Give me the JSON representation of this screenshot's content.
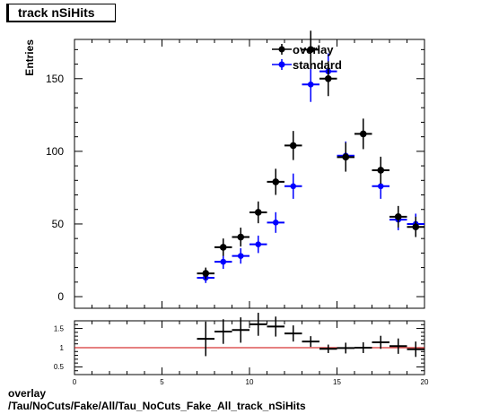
{
  "header": {
    "title": "track nSiHits"
  },
  "footer": {
    "line1": "overlay",
    "line2": "/Tau/NoCuts/Fake/All/Tau_NoCuts_Fake_All_track_nSiHits"
  },
  "colors": {
    "overlay": "#000000",
    "standard": "#0000ff",
    "ratio_line": "#cc0000",
    "frame": "#000000"
  },
  "chart_data": [
    {
      "type": "scatter",
      "ylabel": "Entries",
      "xlim": [
        0,
        20
      ],
      "ylim": [
        -8,
        177
      ],
      "yticks": [
        0,
        50,
        100,
        150
      ],
      "legend_position": "top-center",
      "series": [
        {
          "name": "overlay",
          "x": [
            7.5,
            8.5,
            9.5,
            10.5,
            11.5,
            12.5,
            13.5,
            14.5,
            15.5,
            16.5,
            17.5,
            18.5,
            19.5
          ],
          "values": [
            16,
            34,
            41,
            58,
            79,
            104,
            170,
            150,
            96,
            112,
            87,
            55,
            48
          ],
          "errors": [
            4,
            6,
            6.5,
            7.5,
            9,
            10,
            13,
            12,
            10,
            10.5,
            9.3,
            7.4,
            7
          ]
        },
        {
          "name": "standard",
          "x": [
            7.5,
            8.5,
            9.5,
            10.5,
            11.5,
            12.5,
            13.5,
            14.5,
            15.5,
            16.5,
            17.5,
            18.5,
            19.5
          ],
          "values": [
            13,
            24,
            28,
            36,
            51,
            76,
            146,
            155,
            97,
            null,
            76,
            53,
            50
          ],
          "errors": [
            3.6,
            4.9,
            5.3,
            6,
            7.1,
            8.7,
            12,
            12.4,
            9.8,
            null,
            8.7,
            7.3,
            7.1
          ]
        }
      ]
    },
    {
      "type": "scatter",
      "xlim": [
        0,
        20
      ],
      "ylim": [
        0.3,
        1.7
      ],
      "xticks": [
        0,
        5,
        10,
        15,
        20
      ],
      "yticks": [
        0.5,
        1,
        1.5
      ],
      "reference_line": 1,
      "series": [
        {
          "name": "ratio",
          "x": [
            7.5,
            8.5,
            9.5,
            10.5,
            11.5,
            12.5,
            13.5,
            14.5,
            15.5,
            16.5,
            17.5,
            18.5,
            19.5
          ],
          "values": [
            1.23,
            1.42,
            1.46,
            1.61,
            1.55,
            1.37,
            1.16,
            0.97,
            0.99,
            1.0,
            1.14,
            1.04,
            0.96
          ],
          "errors": [
            0.45,
            0.32,
            0.33,
            0.3,
            0.26,
            0.21,
            0.14,
            0.11,
            0.14,
            0.14,
            0.17,
            0.2,
            0.2
          ]
        }
      ]
    }
  ]
}
